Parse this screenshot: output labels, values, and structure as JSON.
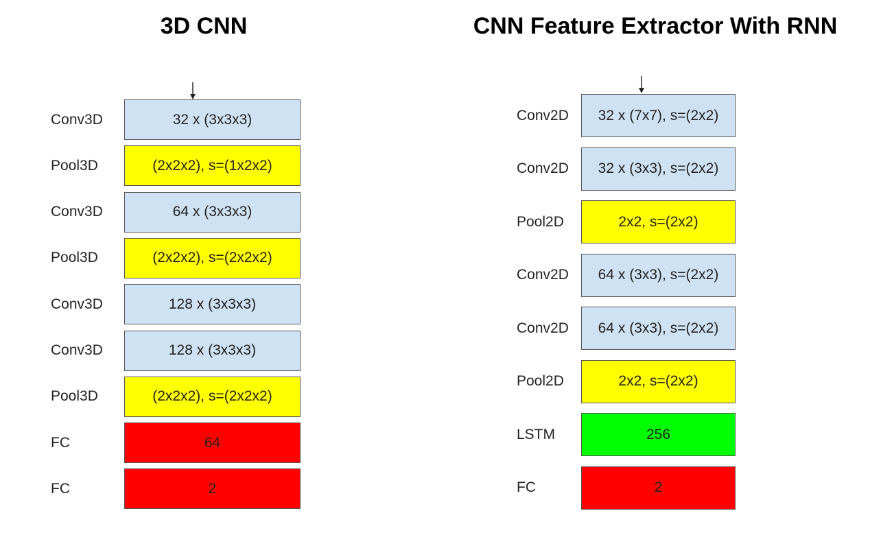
{
  "titles": {
    "left": "3D CNN",
    "right": "CNN Feature Extractor With RNN"
  },
  "left_network": {
    "layers": [
      {
        "label": "Conv3D",
        "text": "32 x (3x3x3)",
        "kind": "conv"
      },
      {
        "label": "Pool3D",
        "text": "(2x2x2), s=(1x2x2)",
        "kind": "pool"
      },
      {
        "label": "Conv3D",
        "text": "64 x (3x3x3)",
        "kind": "conv"
      },
      {
        "label": "Pool3D",
        "text": "(2x2x2), s=(2x2x2)",
        "kind": "pool"
      },
      {
        "label": "Conv3D",
        "text": "128 x (3x3x3)",
        "kind": "conv"
      },
      {
        "label": "Conv3D",
        "text": "128 x (3x3x3)",
        "kind": "conv"
      },
      {
        "label": "Pool3D",
        "text": "(2x2x2), s=(2x2x2)",
        "kind": "pool"
      },
      {
        "label": "FC",
        "text": "64",
        "kind": "fc"
      },
      {
        "label": "FC",
        "text": "2",
        "kind": "fc"
      }
    ]
  },
  "right_network": {
    "layers": [
      {
        "label": "Conv2D",
        "text": "32 x (7x7), s=(2x2)",
        "kind": "conv"
      },
      {
        "label": "Conv2D",
        "text": "32 x (3x3), s=(2x2)",
        "kind": "conv"
      },
      {
        "label": "Pool2D",
        "text": "2x2, s=(2x2)",
        "kind": "pool"
      },
      {
        "label": "Conv2D",
        "text": "64 x (3x3), s=(2x2)",
        "kind": "conv"
      },
      {
        "label": "Conv2D",
        "text": "64 x (3x3), s=(2x2)",
        "kind": "conv"
      },
      {
        "label": "Pool2D",
        "text": "2x2, s=(2x2)",
        "kind": "pool"
      },
      {
        "label": "LSTM",
        "text": "256",
        "kind": "lstm"
      },
      {
        "label": "FC",
        "text": "2",
        "kind": "fc"
      }
    ]
  },
  "colors": {
    "conv": "#cfe2f3",
    "pool": "#ffff00",
    "fc": "#ff0000",
    "lstm": "#00ff00"
  },
  "icons": {
    "input_arrow": "down-arrow-icon"
  }
}
